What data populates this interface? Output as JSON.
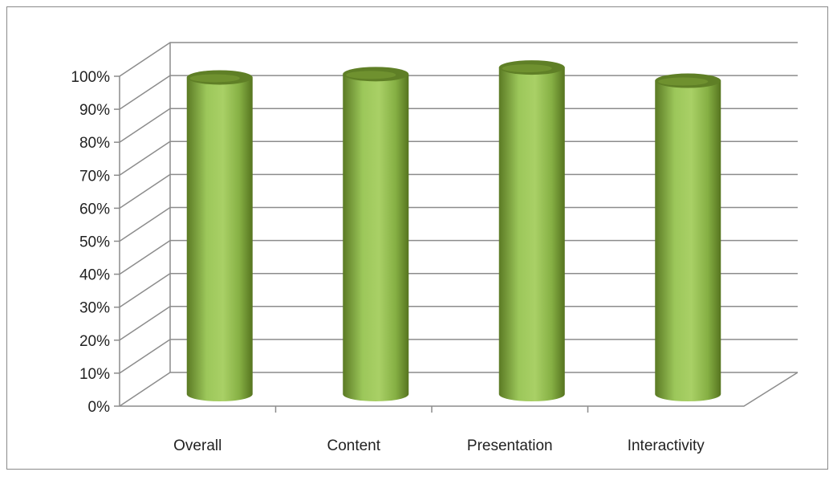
{
  "chart_data": {
    "type": "bar",
    "style": "3d-cylinder",
    "categories": [
      "Overall",
      "Content",
      "Presentation",
      "Interactivity"
    ],
    "series": [
      {
        "values": [
          96,
          97,
          99,
          95
        ]
      }
    ],
    "ylim": [
      0,
      100
    ],
    "y_ticks": [
      "0%",
      "10%",
      "20%",
      "30%",
      "40%",
      "50%",
      "60%",
      "70%",
      "80%",
      "90%",
      "100%"
    ],
    "y_unit": "%",
    "grid": true,
    "legend": "none",
    "colors": {
      "bar": "#8db84a",
      "bar_dark": "#5f7f26",
      "bar_light": "#b9d97e",
      "grid": "#8c8c8c"
    }
  }
}
